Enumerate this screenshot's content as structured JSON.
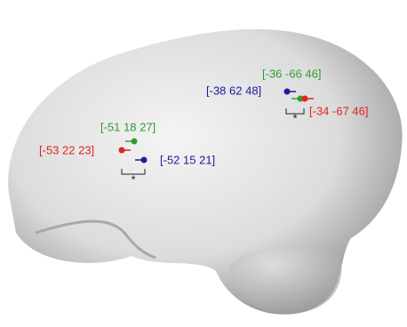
{
  "labels": [
    {
      "text": "[-36 -66 46]",
      "color": "#2e9e2e"
    },
    {
      "text": "[-38 62 48]",
      "color": "#1c1c9c"
    },
    {
      "text": "[-34 -67 46]",
      "color": "#e02424"
    },
    {
      "text": "[-51 18 27]",
      "color": "#2e9e2e"
    },
    {
      "text": "[-53 22 23]",
      "color": "#e02424"
    },
    {
      "text": "[-52 15 21]",
      "color": "#1c1c9c"
    }
  ],
  "markers": [
    "*",
    "*"
  ]
}
